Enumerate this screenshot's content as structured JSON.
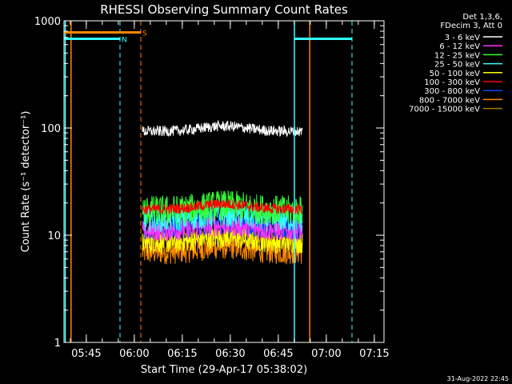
{
  "chart_data": {
    "type": "line",
    "title": "RHESSI Observing Summary Count Rates",
    "xlabel": "Start Time (29-Apr-17 05:38:02)",
    "ylabel": "Count Rate (s⁻¹ detector⁻¹)",
    "yscale": "log",
    "ylim": [
      1,
      1000
    ],
    "xlim_minutes": [
      0,
      100
    ],
    "y_ticks": [
      "1",
      "10",
      "100",
      "1000"
    ],
    "x_ticks": [
      {
        "label": "05:45",
        "minute": 6.97
      },
      {
        "label": "06:00",
        "minute": 21.97
      },
      {
        "label": "06:15",
        "minute": 36.97
      },
      {
        "label": "06:30",
        "minute": 51.97
      },
      {
        "label": "06:45",
        "minute": 66.97
      },
      {
        "label": "07:00",
        "minute": 81.97
      },
      {
        "label": "07:15",
        "minute": 96.97
      }
    ],
    "legend_header": [
      "Det 1,3,6,",
      "FDecim 3, Att 0"
    ],
    "series": [
      {
        "name": "3 - 6 keV",
        "color": "#ffffff",
        "level": 93,
        "amp": 0.05
      },
      {
        "name": "6 - 12 keV",
        "color": "#ff33ff",
        "level": 11,
        "amp": 0.1
      },
      {
        "name": "12 - 25 keV",
        "color": "#33ff33",
        "level": 17,
        "amp": 0.14
      },
      {
        "name": "25 - 50 keV",
        "color": "#33ffff",
        "level": 14,
        "amp": 0.12
      },
      {
        "name": "50 - 100 keV",
        "color": "#ffff00",
        "level": 8.5,
        "amp": 0.1
      },
      {
        "name": "100 - 300 keV",
        "color": "#ff0000",
        "level": 17.5,
        "amp": 0.05
      },
      {
        "name": "300 - 800 keV",
        "color": "#0044ff",
        "level": 11.5,
        "amp": 0.1
      },
      {
        "name": "800 - 7000 keV",
        "color": "#ff8800",
        "level": 7,
        "amp": 0.12
      },
      {
        "name": "7000 - 15000 keV",
        "color": "#aa7700",
        "level": 9,
        "amp": 0.08
      }
    ],
    "data_interval_minutes": [
      24.5,
      74.5
    ],
    "flag_bars": [
      {
        "label": "S",
        "color": "#ff8800",
        "start_minute": 0,
        "end_minute": 24,
        "level": 780
      },
      {
        "label": "N",
        "color": "#33ffff",
        "start_minute": 0,
        "end_minute": 17.5,
        "level": 680
      },
      {
        "label": "",
        "color": "#33ffff",
        "start_minute": 72,
        "end_minute": 90,
        "level": 680
      }
    ],
    "vertical_lines": [
      {
        "minute": 0.4,
        "color": "#33ffff",
        "style": "solid"
      },
      {
        "minute": 2.2,
        "color": "#ff8800",
        "style": "solid"
      },
      {
        "minute": 17.5,
        "color": "#33ffff",
        "style": "dashed"
      },
      {
        "minute": 24.0,
        "color": "#ff8800",
        "style": "dashed"
      },
      {
        "minute": 72.0,
        "color": "#33ffff",
        "style": "solid"
      },
      {
        "minute": 76.8,
        "color": "#ff8800",
        "style": "solid"
      },
      {
        "minute": 90.0,
        "color": "#33ffff",
        "style": "dashed"
      }
    ]
  },
  "footer": {
    "timestamp": "31-Aug-2022 22:45"
  }
}
